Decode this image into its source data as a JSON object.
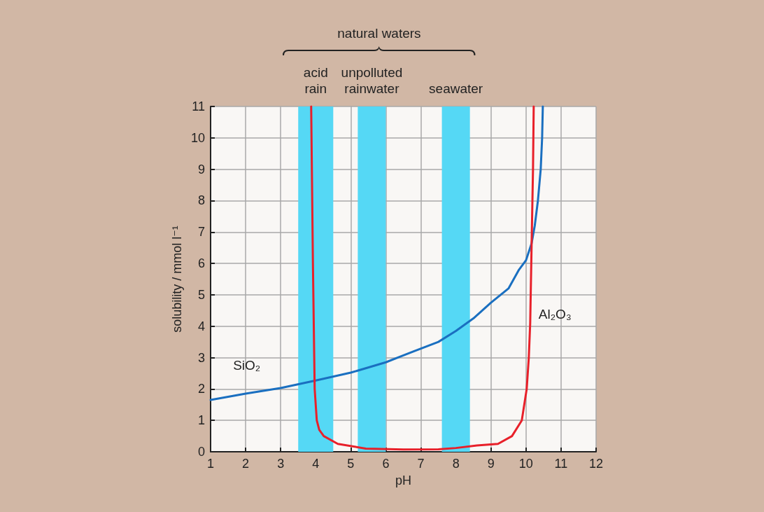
{
  "chart_data": {
    "type": "line",
    "xlabel": "pH",
    "ylabel": "solubility / mmol l⁻¹",
    "annotations": [
      "natural waters"
    ],
    "series": [
      {
        "name": "SiO₂",
        "color": "#1a6fc0",
        "x": [
          1,
          2,
          3,
          4,
          5,
          6,
          6.77,
          7.5,
          8,
          8.5,
          9,
          9.5,
          9.8,
          10,
          10.16,
          10.25,
          10.34,
          10.42,
          10.46,
          10.48
        ],
        "values": [
          1.65,
          1.85,
          2.03,
          2.27,
          2.52,
          2.85,
          3.19,
          3.5,
          3.85,
          4.25,
          4.75,
          5.2,
          5.8,
          6.1,
          6.64,
          7.2,
          8,
          9,
          10,
          11
        ]
      },
      {
        "name": "Al₂O₃",
        "color": "#e8202a",
        "x": [
          3.87,
          3.92,
          3.97,
          4.03,
          4.1,
          4.23,
          4.63,
          5.43,
          6.5,
          7.5,
          8,
          8.6,
          9.2,
          9.6,
          9.88,
          10.02,
          10.08,
          10.12,
          10.16,
          10.2,
          10.22
        ],
        "values": [
          11,
          6,
          2,
          1,
          0.7,
          0.5,
          0.25,
          0.1,
          0.07,
          0.08,
          0.12,
          0.2,
          0.25,
          0.5,
          1,
          2,
          3,
          4.1,
          6.6,
          9,
          11
        ]
      }
    ],
    "xlim": [
      1,
      12
    ],
    "xticks": [
      1,
      2,
      3,
      4,
      5,
      6,
      7,
      8,
      9,
      10,
      11,
      12
    ],
    "ylim": [
      0,
      11
    ],
    "yticks": [
      0,
      1,
      2,
      3,
      4,
      5,
      6,
      7,
      8,
      9,
      10,
      11
    ],
    "bands": [
      {
        "axis": "x",
        "from": 3.5,
        "to": 4.5,
        "label": "acid rain",
        "color": "#55d8f5"
      },
      {
        "axis": "x",
        "from": 5.2,
        "to": 6.0,
        "label": "unpolluted rainwater",
        "color": "#55d8f5"
      },
      {
        "axis": "x",
        "from": 7.6,
        "to": 8.4,
        "label": "seawater",
        "color": "#55d8f5"
      }
    ],
    "grid": true,
    "marker": "none",
    "line_style": "solid"
  }
}
